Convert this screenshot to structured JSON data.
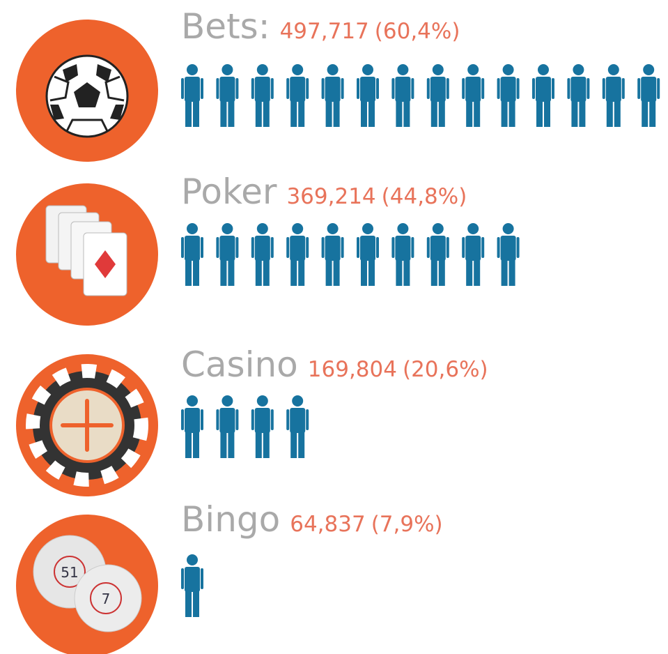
{
  "chart_data": {
    "type": "pictogram",
    "categories": [
      "Bets:",
      "Poker",
      "Casino",
      "Bingo"
    ],
    "values": [
      497717,
      369214,
      169804,
      64837
    ],
    "value_labels": [
      "497,717",
      "369,214",
      "169,804",
      "64,837"
    ],
    "shares": [
      60.4,
      44.8,
      20.6,
      7.9
    ],
    "share_labels": [
      "(60,4%)",
      "(44,8%)",
      "(20,6%)",
      "(7,9%)"
    ],
    "icon_counts": [
      14,
      10,
      4,
      1
    ],
    "color": "#17739f",
    "label_color": "#e8735a",
    "circle_color": "#ee622c"
  }
}
